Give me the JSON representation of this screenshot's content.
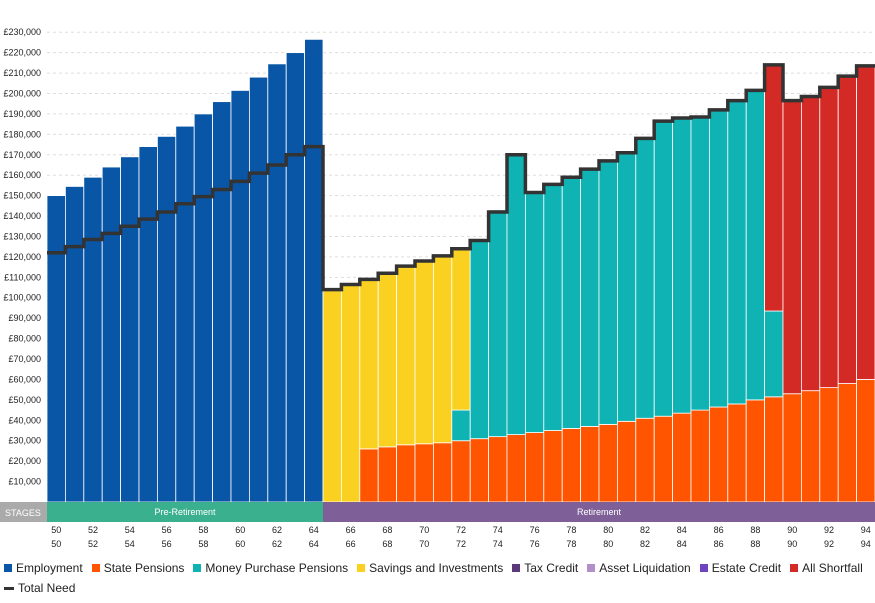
{
  "chart_data": {
    "type": "bar",
    "stacked": true,
    "y_tick_labels": [
      "£10,000",
      "£20,000",
      "£30,000",
      "£40,000",
      "£50,000",
      "£60,000",
      "£70,000",
      "£80,000",
      "£90,000",
      "£100,000",
      "£110,000",
      "£120,000",
      "£130,000",
      "£140,000",
      "£150,000",
      "£160,000",
      "£170,000",
      "£180,000",
      "£190,000",
      "£200,000",
      "£210,000",
      "£220,000",
      "£230,000"
    ],
    "y_tick_values": [
      10000,
      20000,
      30000,
      40000,
      50000,
      60000,
      70000,
      80000,
      90000,
      100000,
      110000,
      120000,
      130000,
      140000,
      150000,
      160000,
      170000,
      180000,
      190000,
      200000,
      210000,
      220000,
      230000
    ],
    "ylim": [
      0,
      235000
    ],
    "grid": true,
    "categories": [
      50,
      51,
      52,
      53,
      54,
      55,
      56,
      57,
      58,
      59,
      60,
      61,
      62,
      63,
      64,
      65,
      66,
      67,
      68,
      69,
      70,
      71,
      72,
      73,
      74,
      75,
      76,
      77,
      78,
      79,
      80,
      81,
      82,
      83,
      84,
      85,
      86,
      87,
      88,
      89,
      90,
      91,
      92,
      93,
      94
    ],
    "x_tick_labels": [
      "50",
      "52",
      "54",
      "56",
      "58",
      "60",
      "62",
      "64",
      "66",
      "68",
      "70",
      "72",
      "74",
      "76",
      "78",
      "80",
      "82",
      "84",
      "86",
      "88",
      "90",
      "92",
      "94"
    ],
    "stages_label": "STAGES",
    "stages": [
      {
        "label": "Pre-Retirement",
        "from": 50,
        "to": 64,
        "color": "#3bb08f"
      },
      {
        "label": "Retirement",
        "from": 65,
        "to": 94,
        "color": "#7e5f98"
      }
    ],
    "series": [
      {
        "name": "Employment",
        "color": "#0a56a6",
        "values": [
          150000,
          154500,
          159000,
          164000,
          169000,
          174000,
          179000,
          184000,
          190000,
          196000,
          201500,
          208000,
          214500,
          220000,
          226500,
          0,
          0,
          0,
          0,
          0,
          0,
          0,
          0,
          0,
          0,
          0,
          0,
          0,
          0,
          0,
          0,
          0,
          0,
          0,
          0,
          0,
          0,
          0,
          0,
          0,
          0,
          0,
          0,
          0,
          0
        ]
      },
      {
        "name": "State Pensions",
        "color": "#ff5500",
        "values": [
          0,
          0,
          0,
          0,
          0,
          0,
          0,
          0,
          0,
          0,
          0,
          0,
          0,
          0,
          0,
          0,
          0,
          26000,
          27000,
          28000,
          28500,
          29000,
          30000,
          31000,
          32000,
          33000,
          34000,
          35000,
          36000,
          37000,
          38000,
          39500,
          41000,
          42000,
          43500,
          45000,
          46500,
          48000,
          50000,
          51500,
          53000,
          54500,
          56000,
          58000,
          60000
        ]
      },
      {
        "name": "Money Purchase Pensions",
        "color": "#0fb3b3",
        "values": [
          0,
          0,
          0,
          0,
          0,
          0,
          0,
          0,
          0,
          0,
          0,
          0,
          0,
          0,
          0,
          0,
          0,
          0,
          0,
          0,
          0,
          0,
          15000,
          97000,
          111000,
          138000,
          118000,
          120500,
          123000,
          126000,
          129000,
          131500,
          137000,
          144500,
          144500,
          143500,
          145500,
          148500,
          151500,
          42000,
          0,
          0,
          0,
          0,
          0
        ]
      },
      {
        "name": "Savings and Investments",
        "color": "#fad121",
        "values": [
          0,
          0,
          0,
          0,
          0,
          0,
          0,
          0,
          0,
          0,
          0,
          0,
          0,
          0,
          0,
          104000,
          106500,
          83000,
          85000,
          87500,
          89000,
          91500,
          79000,
          0,
          0,
          0,
          0,
          0,
          0,
          0,
          0,
          0,
          0,
          0,
          0,
          0,
          0,
          0,
          0,
          0,
          0,
          0,
          0,
          0,
          0
        ]
      },
      {
        "name": "Tax Credit",
        "color": "#5c3a7a",
        "values": [
          0,
          0,
          0,
          0,
          0,
          0,
          0,
          0,
          0,
          0,
          0,
          0,
          0,
          0,
          0,
          0,
          0,
          0,
          0,
          0,
          0,
          0,
          0,
          0,
          0,
          0,
          0,
          0,
          0,
          0,
          0,
          0,
          0,
          0,
          0,
          0,
          0,
          0,
          0,
          0,
          0,
          0,
          0,
          0,
          0
        ]
      },
      {
        "name": "Asset Liquidation",
        "color": "#b38fc8",
        "values": [
          0,
          0,
          0,
          0,
          0,
          0,
          0,
          0,
          0,
          0,
          0,
          0,
          0,
          0,
          0,
          0,
          0,
          0,
          0,
          0,
          0,
          0,
          0,
          0,
          0,
          0,
          0,
          0,
          0,
          0,
          0,
          0,
          0,
          0,
          0,
          0,
          0,
          0,
          0,
          0,
          0,
          0,
          0,
          0,
          0
        ]
      },
      {
        "name": "Estate Credit",
        "color": "#6e44c2",
        "values": [
          0,
          0,
          0,
          0,
          0,
          0,
          0,
          0,
          0,
          0,
          0,
          0,
          0,
          0,
          0,
          0,
          0,
          0,
          0,
          0,
          0,
          0,
          0,
          0,
          0,
          0,
          0,
          0,
          0,
          0,
          0,
          0,
          0,
          0,
          0,
          0,
          0,
          0,
          0,
          0,
          0,
          0,
          0,
          0,
          0
        ]
      },
      {
        "name": "All Shortfall",
        "color": "#d42a26",
        "values": [
          0,
          0,
          0,
          0,
          0,
          0,
          0,
          0,
          0,
          0,
          0,
          0,
          0,
          0,
          0,
          0,
          0,
          0,
          0,
          0,
          0,
          0,
          0,
          0,
          0,
          0,
          0,
          0,
          0,
          0,
          0,
          0,
          0,
          0,
          0,
          0,
          0,
          0,
          0,
          121000,
          144000,
          144000,
          147000,
          150500,
          153500
        ]
      }
    ],
    "total_need": {
      "name": "Total Need",
      "color": "#333333",
      "values": [
        122000,
        125000,
        128500,
        131500,
        135000,
        138500,
        142000,
        146000,
        149500,
        153000,
        157000,
        161000,
        165000,
        170000,
        174000,
        104000,
        106500,
        109000,
        112000,
        115500,
        118000,
        120500,
        124000,
        128000,
        142000,
        170000,
        151500,
        155500,
        159000,
        163000,
        167000,
        171000,
        178000,
        186500,
        188000,
        188500,
        192000,
        196500,
        201500,
        214000,
        196500,
        198500,
        203000,
        208500,
        213500
      ]
    }
  }
}
